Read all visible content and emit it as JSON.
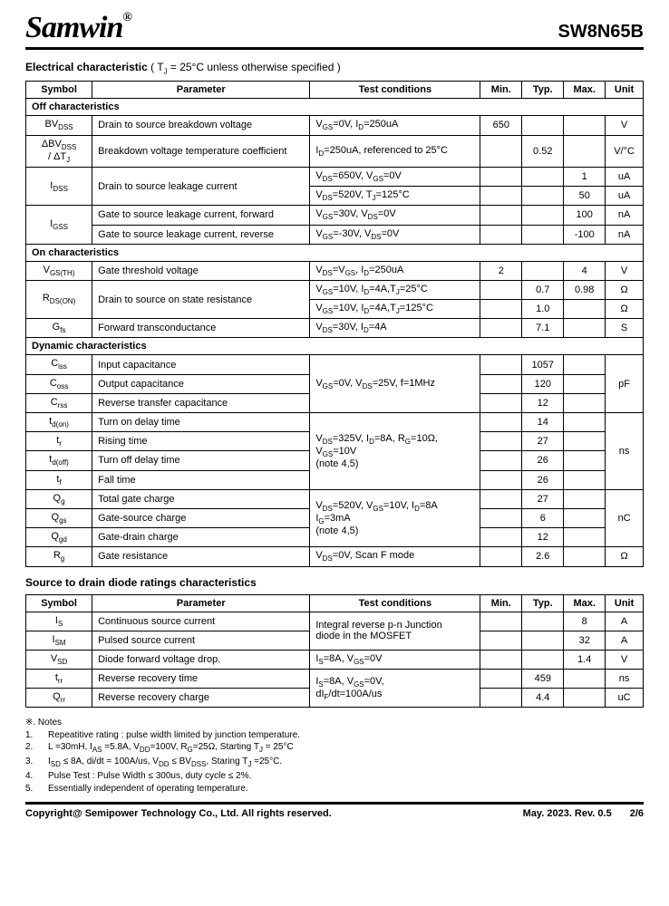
{
  "header": {
    "logo": "Samwin",
    "reg": "®",
    "partnum": "SW8N65B"
  },
  "title1": {
    "bold": "Electrical characteristic",
    "rest": " ( T",
    "sub": "J",
    "rest2": " = 25°C unless otherwise specified )"
  },
  "cols": {
    "sym": "Symbol",
    "param": "Parameter",
    "cond": "Test conditions",
    "min": "Min.",
    "typ": "Typ.",
    "max": "Max.",
    "unit": "Unit"
  },
  "groups": {
    "off": "Off characteristics",
    "on": "On characteristics",
    "dyn": "Dynamic characteristics"
  },
  "off": {
    "r1": {
      "sym_pre": "BV",
      "sym_sub": "DSS",
      "param": "Drain to source breakdown voltage",
      "cond": "V_{GS}=0V, I_{D}=250uA",
      "min": "650",
      "typ": "",
      "max": "",
      "unit": "V"
    },
    "r2": {
      "sym_pre": "ΔBV",
      "sym_sub": "DSS",
      "sym2": " / ΔT",
      "sym2_sub": "J",
      "param": "Breakdown voltage temperature coefficient",
      "cond": "I_{D}=250uA, referenced to 25°C",
      "min": "",
      "typ": "0.52",
      "max": "",
      "unit": "V/°C"
    },
    "r3": {
      "sym_pre": "I",
      "sym_sub": "DSS",
      "param": "Drain to source leakage current",
      "cond1": "V_{DS}=650V, V_{GS}=0V",
      "min1": "",
      "typ1": "",
      "max1": "1",
      "unit1": "uA",
      "cond2": "V_{DS}=520V, T_{J}=125°C",
      "min2": "",
      "typ2": "",
      "max2": "50",
      "unit2": "uA"
    },
    "r4": {
      "sym_pre": "I",
      "sym_sub": "GSS",
      "param1": "Gate to source leakage current, forward",
      "cond1": "V_{GS}=30V, V_{DS}=0V",
      "max1": "100",
      "unit1": "nA",
      "param2": "Gate to source leakage current, reverse",
      "cond2": "V_{GS}=-30V, V_{DS}=0V",
      "max2": "-100",
      "unit2": "nA"
    }
  },
  "on": {
    "r1": {
      "sym_pre": "V",
      "sym_sub": "GS(TH)",
      "param": "Gate threshold voltage",
      "cond": "V_{DS}=V_{GS}, I_{D}=250uA",
      "min": "2",
      "typ": "",
      "max": "4",
      "unit": "V"
    },
    "r2": {
      "sym_pre": "R",
      "sym_sub": "DS(ON)",
      "param": "Drain to source on state resistance",
      "cond1": "V_{GS}=10V, I_{D}=4A,T_{J}=25°C",
      "typ1": "0.7",
      "max1": "0.98",
      "unit1": "Ω",
      "cond2": "V_{GS}=10V, I_{D}=4A,T_{J}=125°C",
      "typ2": "1.0",
      "max2": "",
      "unit2": "Ω"
    },
    "r3": {
      "sym_pre": "G",
      "sym_sub": "fs",
      "param": "Forward transconductance",
      "cond": "V_{DS}=30V, I_{D}=4A",
      "min": "",
      "typ": "7.1",
      "max": "",
      "unit": "S"
    }
  },
  "dyn": {
    "r1": {
      "sym_pre": "C",
      "sym_sub": "iss",
      "param": "Input capacitance",
      "typ": "1057"
    },
    "r2": {
      "sym_pre": "C",
      "sym_sub": "oss",
      "param": "Output capacitance",
      "typ": "120"
    },
    "r3": {
      "sym_pre": "C",
      "sym_sub": "rss",
      "param": "Reverse transfer capacitance",
      "typ": "12"
    },
    "cap_cond": "V_{GS}=0V, V_{DS}=25V, f=1MHz",
    "cap_unit": "pF",
    "r4": {
      "sym_pre": "t",
      "sym_sub": "d(on)",
      "param": "Turn on delay time",
      "typ": "14"
    },
    "r5": {
      "sym_pre": "t",
      "sym_sub": "r",
      "param": "Rising time",
      "typ": "27"
    },
    "r6": {
      "sym_pre": "t",
      "sym_sub": "d(off)",
      "param": "Turn off delay time",
      "typ": "26"
    },
    "r7": {
      "sym_pre": "t",
      "sym_sub": "f",
      "param": "Fall time",
      "typ": "26"
    },
    "time_cond_l1": "V_{DS}=325V, I_{D}=8A, R_{G}=10Ω,",
    "time_cond_l2": "V_{GS}=10V",
    "time_cond_l3": "(note 4,5)",
    "time_unit": "ns",
    "r8": {
      "sym_pre": "Q",
      "sym_sub": "g",
      "param": "Total gate charge",
      "typ": "27"
    },
    "r9": {
      "sym_pre": "Q",
      "sym_sub": "gs",
      "param": "Gate-source charge",
      "typ": "6"
    },
    "r10": {
      "sym_pre": "Q",
      "sym_sub": "gd",
      "param": "Gate-drain charge",
      "typ": "12"
    },
    "q_cond_l1": "V_{DS}=520V, V_{GS}=10V, I_{D}=8A",
    "q_cond_l2": "I_{G}=3mA",
    "q_cond_l3": "(note 4,5)",
    "q_unit": "nC",
    "r11": {
      "sym_pre": "R",
      "sym_sub": "g",
      "param": "Gate resistance",
      "cond": "V_{DS}=0V, Scan F mode",
      "typ": "2.6",
      "unit": "Ω"
    }
  },
  "title2": "Source to drain diode ratings characteristics",
  "diode": {
    "r1": {
      "sym_pre": "I",
      "sym_sub": "S",
      "param": "Continuous source current",
      "max": "8",
      "unit": "A"
    },
    "r2": {
      "sym_pre": "I",
      "sym_sub": "SM",
      "param": "Pulsed source current",
      "max": "32",
      "unit": "A"
    },
    "cond12_l1": "Integral reverse p-n Junction",
    "cond12_l2": "diode in the MOSFET",
    "r3": {
      "sym_pre": "V",
      "sym_sub": "SD",
      "param": "Diode forward voltage drop.",
      "cond": "I_{S}=8A, V_{GS}=0V",
      "max": "1.4",
      "unit": "V"
    },
    "r4": {
      "sym_pre": "t",
      "sym_sub": "rr",
      "param": "Reverse recovery time",
      "typ": "459",
      "unit": "ns"
    },
    "r5": {
      "sym_pre": "Q",
      "sym_sub": "rr",
      "param": "Reverse recovery charge",
      "typ": "4.4",
      "unit": "uC"
    },
    "cond45_l1": "I_{S}=8A, V_{GS}=0V,",
    "cond45_l2": "dI_{F}/dt=100A/us"
  },
  "notes": {
    "title": "※. Notes",
    "n1": "Repeatitive rating : pulse width limited by junction temperature.",
    "n2": "L =30mH, I_{AS} =5.8A, V_{DD}=100V, R_{G}=25Ω, Starting T_{J} = 25°C",
    "n3": "I_{SD} ≤ 8A, di/dt = 100A/us, V_{DD} ≤ BV_{DSS}, Staring T_{J} =25°C.",
    "n4": "Pulse Test : Pulse Width ≤ 300us, duty cycle ≤ 2%.",
    "n5": "Essentially independent of operating temperature."
  },
  "footer": {
    "left": "Copyright@ Semipower Technology Co., Ltd. All rights reserved.",
    "date": "May. 2023. Rev. 0.5",
    "page": "2/6"
  }
}
